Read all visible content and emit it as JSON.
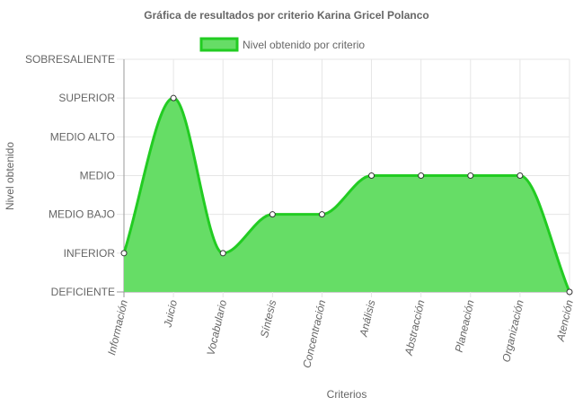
{
  "chart_data": {
    "type": "area",
    "title": "Gráfica de resultados por criterio Karina Gricel Polanco",
    "xlabel": "Criterios",
    "ylabel": "Nivel obtenido",
    "categories": [
      "Información",
      "Juicio",
      "Vocabulario",
      "Síntesis",
      "Concentración",
      "Análisis",
      "Abstracción",
      "Planeación",
      "Organización",
      "Atención"
    ],
    "y_levels": [
      "DEFICIENTE",
      "INFERIOR",
      "MEDIO BAJO",
      "MEDIO",
      "MEDIO ALTO",
      "SUPERIOR",
      "SOBRESALIENTE"
    ],
    "ylim": [
      0,
      6
    ],
    "series": [
      {
        "name": "Nivel obtenido por criterio",
        "values": [
          1,
          5,
          1,
          2,
          2,
          3,
          3,
          3,
          3,
          0
        ],
        "value_labels": [
          "INFERIOR",
          "SUPERIOR",
          "INFERIOR",
          "MEDIO BAJO",
          "MEDIO BAJO",
          "MEDIO",
          "MEDIO",
          "MEDIO",
          "MEDIO",
          "DEFICIENTE"
        ]
      }
    ],
    "grid": true,
    "legend_position": "top",
    "colors": {
      "fill": "#66dd66",
      "line": "#22cc22",
      "point_fill": "#ffffff",
      "point_stroke": "#333333",
      "grid": "#e6e6e6",
      "axis": "#999999",
      "text": "#666666"
    }
  }
}
